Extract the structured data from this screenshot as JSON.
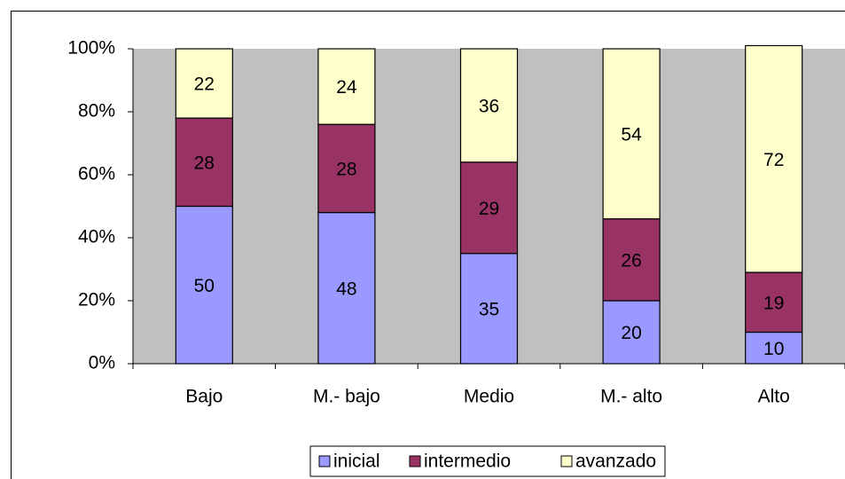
{
  "chart_data": {
    "type": "stacked_bar",
    "categories": [
      "Bajo",
      "M.- bajo",
      "Medio",
      "M.- alto",
      "Alto"
    ],
    "series": [
      {
        "name": "inicial",
        "color": "#9999ff",
        "values": [
          50,
          48,
          35,
          20,
          10
        ]
      },
      {
        "name": "intermedio",
        "color": "#993366",
        "values": [
          28,
          28,
          29,
          26,
          19
        ]
      },
      {
        "name": "avanzado",
        "color": "#ffffcc",
        "values": [
          22,
          24,
          36,
          54,
          72
        ]
      }
    ],
    "ylim": [
      0,
      100
    ],
    "yticks": [
      {
        "value": 0,
        "label": "0%"
      },
      {
        "value": 20,
        "label": "20%"
      },
      {
        "value": 40,
        "label": "40%"
      },
      {
        "value": 60,
        "label": "60%"
      },
      {
        "value": 80,
        "label": "80%"
      },
      {
        "value": 100,
        "label": "100%"
      }
    ],
    "plot_background": "#c0c0c0",
    "legend": "bottom"
  }
}
